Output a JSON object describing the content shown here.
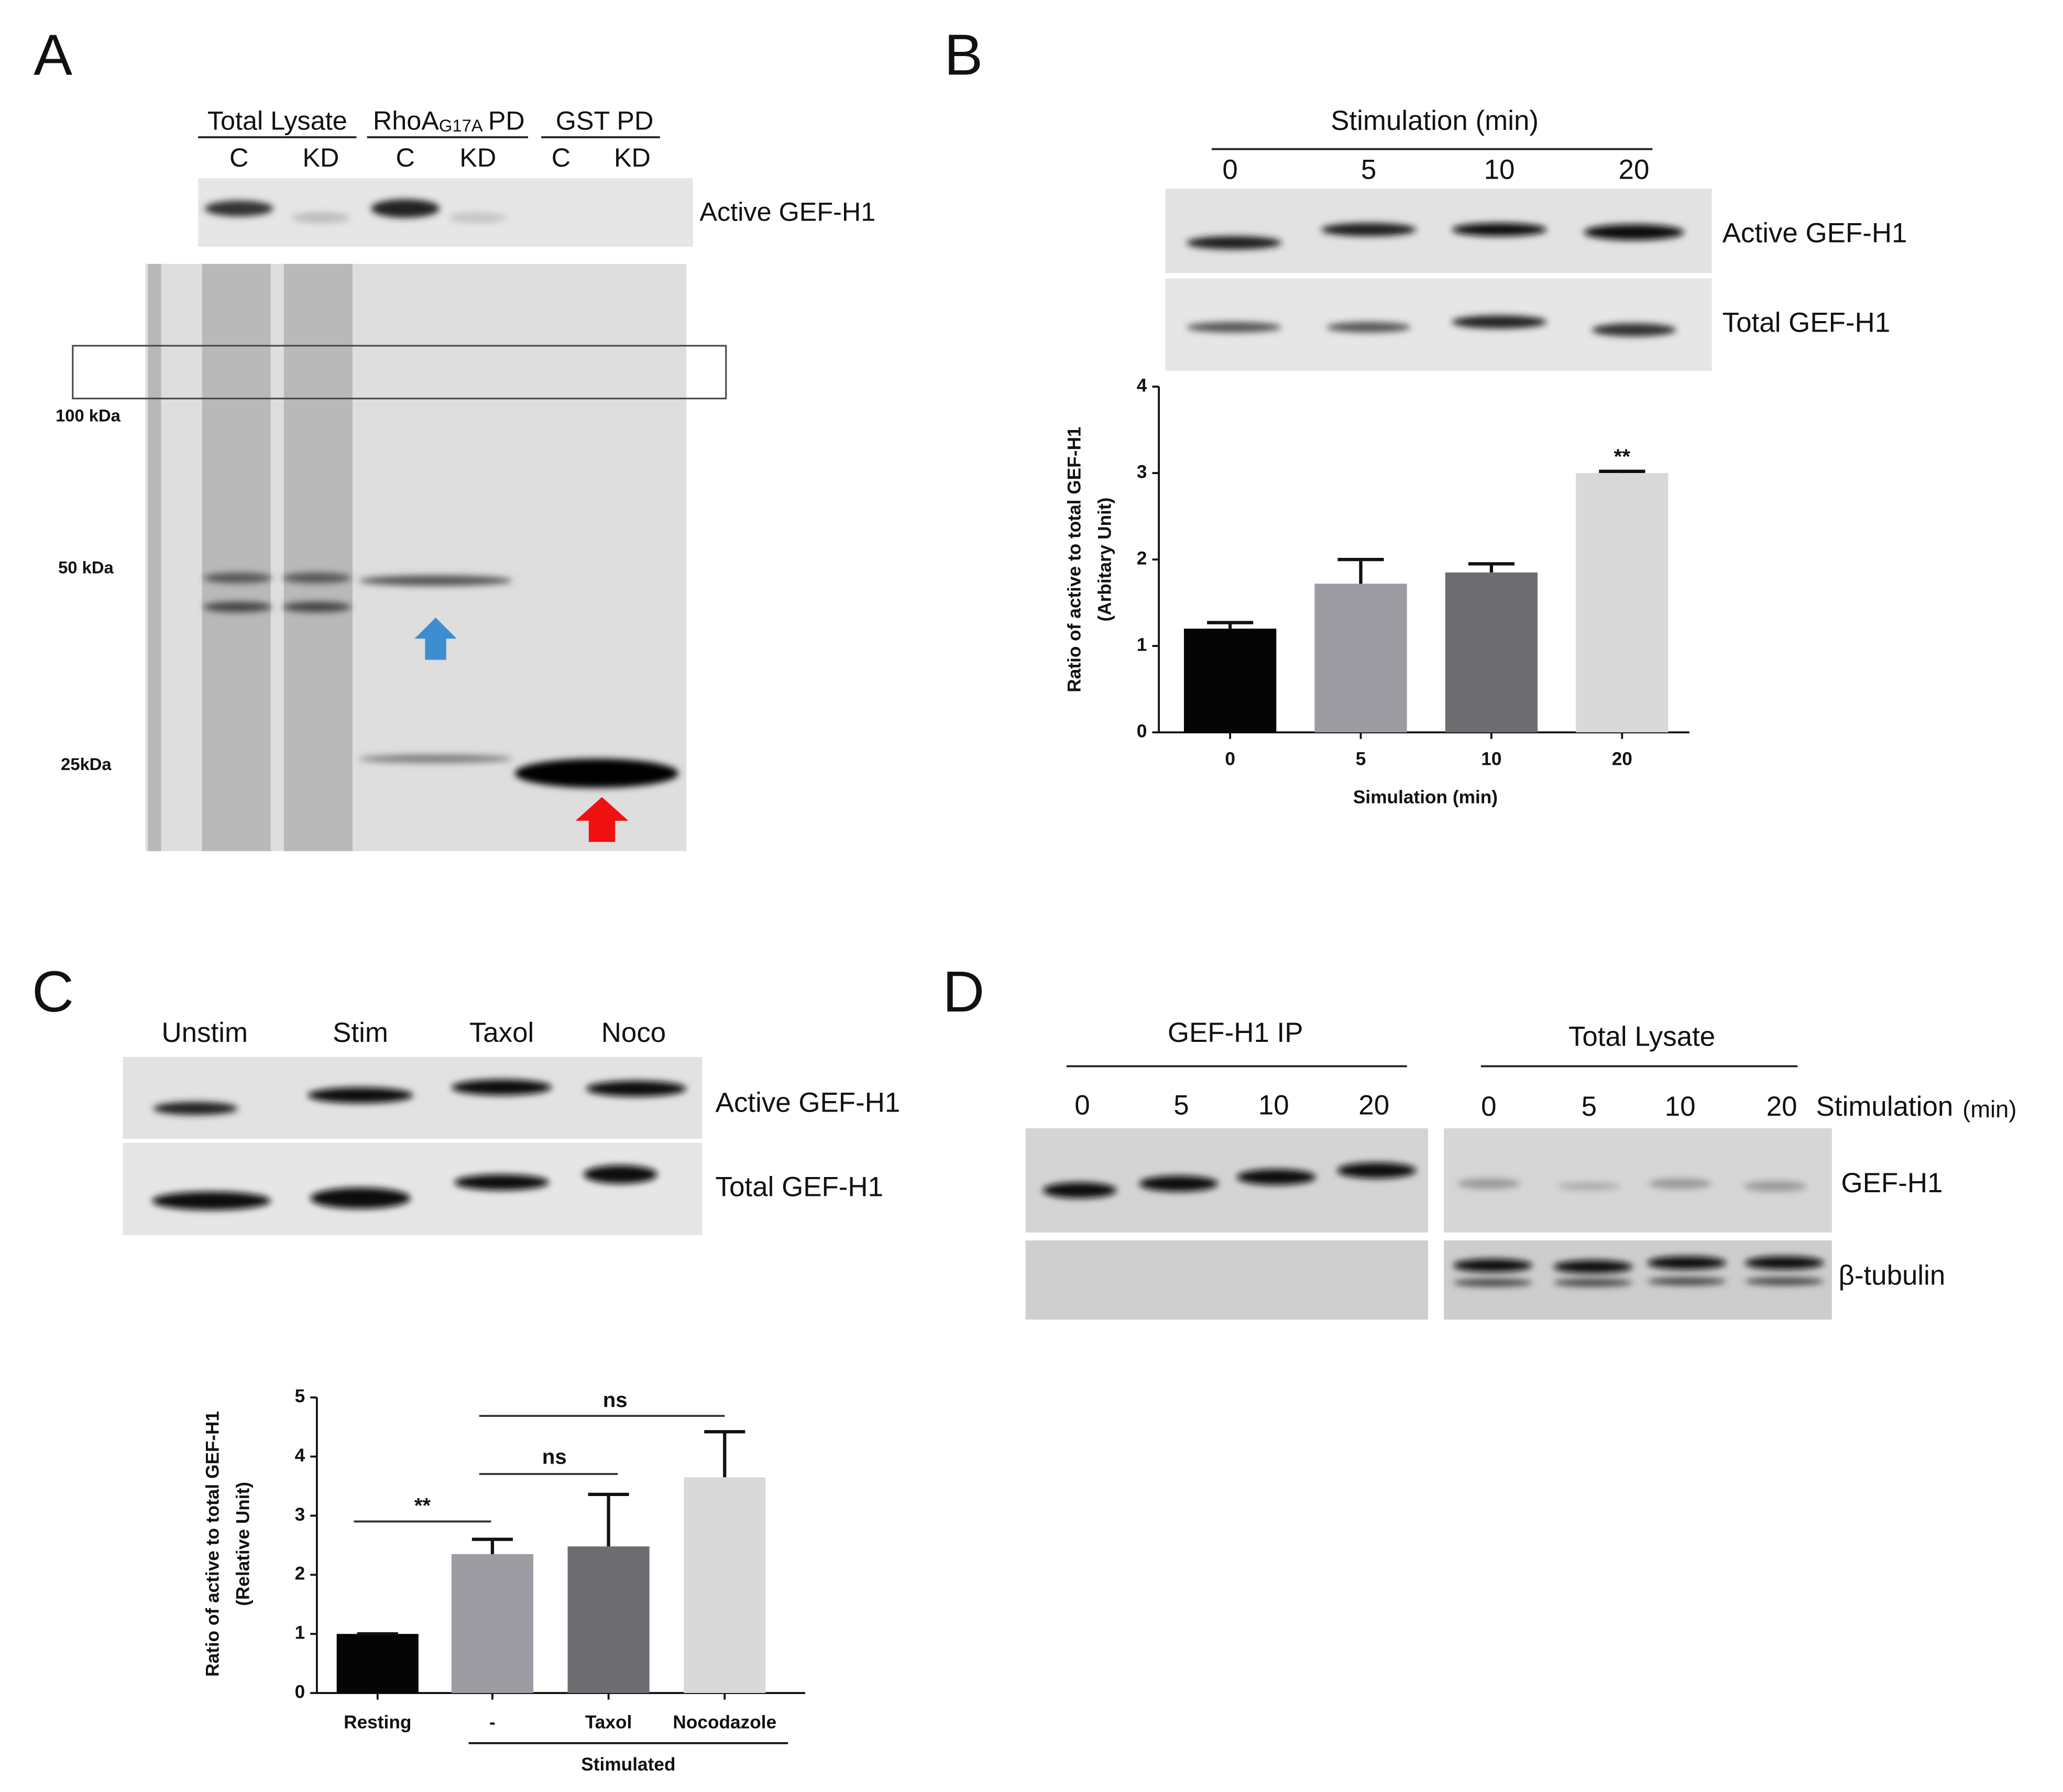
{
  "panels": {
    "a": {
      "label": "A",
      "groups": [
        {
          "name": "Total Lysate",
          "lanes": [
            "C",
            "KD"
          ]
        },
        {
          "name": "RhoA",
          "subscript": "G17A",
          "suffix": "PD",
          "lanes": [
            "C",
            "KD"
          ]
        },
        {
          "name": "GST PD",
          "lanes": [
            "C",
            "KD"
          ]
        }
      ],
      "blot_label": "Active GEF-H1",
      "markers": [
        "100 kDa",
        "50 kDa",
        "25kDa"
      ]
    },
    "b": {
      "label": "B",
      "header": "Stimulation (min)",
      "lanes": [
        "0",
        "5",
        "10",
        "20"
      ],
      "rows": [
        "Active GEF-H1",
        "Total GEF-H1"
      ]
    },
    "c": {
      "label": "C",
      "lanes": [
        "Unstim",
        "Stim",
        "Taxol",
        "Noco"
      ],
      "rows": [
        "Active GEF-H1",
        "Total GEF-H1"
      ]
    },
    "d": {
      "label": "D",
      "groups": [
        {
          "name": "GEF-H1 IP",
          "lanes": [
            "0",
            "5",
            "10",
            "20"
          ]
        },
        {
          "name": "Total Lysate",
          "lanes": [
            "0",
            "5",
            "10",
            "20"
          ]
        }
      ],
      "axis_label": "Stimulation",
      "axis_unit": "(min)",
      "rows": [
        "GEF-H1",
        "β-tubulin"
      ]
    }
  },
  "chart_data": [
    {
      "type": "bar",
      "categories": [
        "0",
        "5",
        "10",
        "20"
      ],
      "values": [
        1.2,
        1.72,
        1.85,
        3.0
      ],
      "errors": [
        0.07,
        0.28,
        0.1,
        0.02
      ],
      "colors": [
        "#050505",
        "#9c9ca2",
        "#6e6e72",
        "#d9d9d9"
      ],
      "ylim": [
        0,
        4
      ],
      "yticks": [
        0,
        1,
        2,
        3,
        4
      ],
      "y_label": [
        "Ratio of active to total GEF-H1",
        "(Arbitary Unit)"
      ],
      "x_label": "Simulation (min)",
      "annotations": [
        "**"
      ]
    },
    {
      "type": "bar",
      "categories": [
        "Resting",
        "-",
        "Taxol",
        "Nocodazole"
      ],
      "values": [
        1.0,
        2.35,
        2.48,
        3.65
      ],
      "errors": [
        0.0,
        0.25,
        0.88,
        0.77
      ],
      "colors": [
        "#050505",
        "#9c9ca2",
        "#6e6e72",
        "#d9d9d9"
      ],
      "ylim": [
        0,
        5
      ],
      "yticks": [
        0,
        1,
        2,
        3,
        4,
        5
      ],
      "y_label": [
        "Ratio of active to total GEF-H1",
        "(Relative Unit)"
      ],
      "group_label": "Stimulated",
      "annotations": [
        "**",
        "ns",
        "ns"
      ]
    }
  ]
}
